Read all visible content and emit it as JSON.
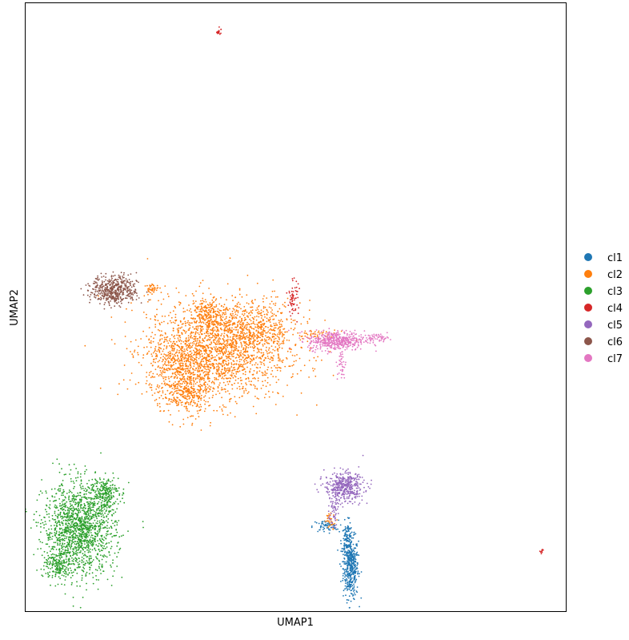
{
  "chart_data": {
    "type": "scatter",
    "title": "",
    "xlabel": "UMAP1",
    "ylabel": "UMAP2",
    "xlim": [
      0,
      100
    ],
    "ylim": [
      0,
      100
    ],
    "ticks_visible": false,
    "grid": false,
    "legend_position": "right",
    "series": [
      {
        "name": "cl1",
        "color": "#1f77b4",
        "clusters": [
          {
            "cx": 60.2,
            "cy": 7.2,
            "sx": 0.7,
            "sy": 2.5,
            "n": 420
          },
          {
            "cx": 59.5,
            "cy": 11.5,
            "sx": 0.5,
            "sy": 1.6,
            "n": 120
          },
          {
            "cx": 55.5,
            "cy": 14.0,
            "sx": 1.2,
            "sy": 0.5,
            "n": 60
          }
        ]
      },
      {
        "name": "cl2",
        "color": "#ff7f0e",
        "clusters": [
          {
            "cx": 35.5,
            "cy": 43.0,
            "sx": 6.5,
            "sy": 4.2,
            "n": 1800
          },
          {
            "cx": 29.0,
            "cy": 40.0,
            "sx": 3.0,
            "sy": 3.0,
            "n": 500
          },
          {
            "cx": 42.0,
            "cy": 46.5,
            "sx": 4.5,
            "sy": 2.2,
            "n": 450
          },
          {
            "cx": 30.0,
            "cy": 35.5,
            "sx": 1.8,
            "sy": 1.4,
            "n": 200
          },
          {
            "cx": 34.0,
            "cy": 49.0,
            "sx": 1.3,
            "sy": 1.2,
            "n": 140
          },
          {
            "cx": 23.5,
            "cy": 53.0,
            "sx": 0.6,
            "sy": 0.4,
            "n": 40
          },
          {
            "cx": 54.0,
            "cy": 45.5,
            "sx": 1.8,
            "sy": 0.4,
            "n": 40
          },
          {
            "cx": 56.5,
            "cy": 15.0,
            "sx": 0.6,
            "sy": 0.6,
            "n": 30
          }
        ]
      },
      {
        "name": "cl3",
        "color": "#2ca02c",
        "clusters": [
          {
            "cx": 10.0,
            "cy": 13.5,
            "sx": 3.3,
            "sy": 3.8,
            "n": 1500
          },
          {
            "cx": 14.5,
            "cy": 19.5,
            "sx": 1.4,
            "sy": 1.4,
            "n": 220
          },
          {
            "cx": 6.0,
            "cy": 7.5,
            "sx": 1.2,
            "sy": 1.2,
            "n": 150
          }
        ]
      },
      {
        "name": "cl4",
        "color": "#d62728",
        "clusters": [
          {
            "cx": 35.8,
            "cy": 95.3,
            "sx": 0.2,
            "sy": 0.3,
            "n": 18
          },
          {
            "cx": 49.5,
            "cy": 51.5,
            "sx": 0.5,
            "sy": 1.4,
            "n": 60
          },
          {
            "cx": 95.5,
            "cy": 10.0,
            "sx": 0.15,
            "sy": 0.2,
            "n": 10
          }
        ]
      },
      {
        "name": "cl5",
        "color": "#9467bd",
        "clusters": [
          {
            "cx": 59.0,
            "cy": 20.5,
            "sx": 1.8,
            "sy": 1.2,
            "n": 420
          },
          {
            "cx": 57.0,
            "cy": 17.0,
            "sx": 0.4,
            "sy": 1.5,
            "n": 60
          }
        ]
      },
      {
        "name": "cl6",
        "color": "#8c564b",
        "clusters": [
          {
            "cx": 16.5,
            "cy": 52.8,
            "sx": 2.1,
            "sy": 1.2,
            "n": 500
          }
        ]
      },
      {
        "name": "cl7",
        "color": "#e377c2",
        "clusters": [
          {
            "cx": 57.5,
            "cy": 44.5,
            "sx": 2.6,
            "sy": 0.8,
            "n": 460
          },
          {
            "cx": 65.0,
            "cy": 45.0,
            "sx": 1.2,
            "sy": 0.3,
            "n": 50
          },
          {
            "cx": 58.5,
            "cy": 40.5,
            "sx": 0.4,
            "sy": 1.4,
            "n": 40
          }
        ]
      }
    ]
  }
}
